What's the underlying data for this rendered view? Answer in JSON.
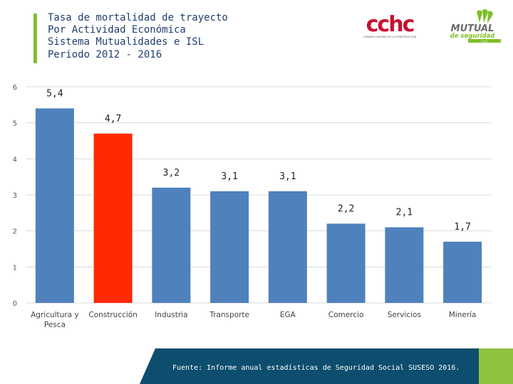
{
  "title": {
    "line1": "Tasa de mortalidad de trayecto",
    "line2": "Por Actividad Económica",
    "line3": "Sistema Mutualidades e ISL",
    "line4": "Periodo 2012 - 2016"
  },
  "logos": {
    "cchc_text": "cchc",
    "cchc_sub": "CAMARA CHILENA DE LA CONSTRUCCION",
    "mutual_name": "MUTUAL",
    "mutual_sub": "de seguridad",
    "mutual_tag": "CChC"
  },
  "colors": {
    "bar": "#4f81bd",
    "highlight": "#ff2a00",
    "grid": "#d9d9d9",
    "title": "#1f3e6e",
    "footer": "#0d4d6e",
    "accent_green": "#8ec23f"
  },
  "chart_data": {
    "type": "bar",
    "title": "Tasa de mortalidad de trayecto Por Actividad Económica",
    "categories": [
      [
        "Agricultura y",
        "Pesca"
      ],
      [
        "Construcción"
      ],
      [
        "Industria"
      ],
      [
        "Transporte"
      ],
      [
        "EGA"
      ],
      [
        "Comercio"
      ],
      [
        "Servicios"
      ],
      [
        "Minería"
      ]
    ],
    "values": [
      5.4,
      4.7,
      3.2,
      3.1,
      3.1,
      2.2,
      2.1,
      1.7
    ],
    "labels": [
      "5,4",
      "4,7",
      "3,2",
      "3,1",
      "3,1",
      "2,2",
      "2,1",
      "1,7"
    ],
    "highlight_index": 1,
    "ylim": [
      0,
      6
    ],
    "yticks": [
      0,
      1,
      2,
      3,
      4,
      5,
      6
    ],
    "xlabel": "",
    "ylabel": "",
    "grid": true
  },
  "footer": {
    "source": "Fuente: Informe anual estadísticas de Seguridad Social SUSESO 2016."
  }
}
